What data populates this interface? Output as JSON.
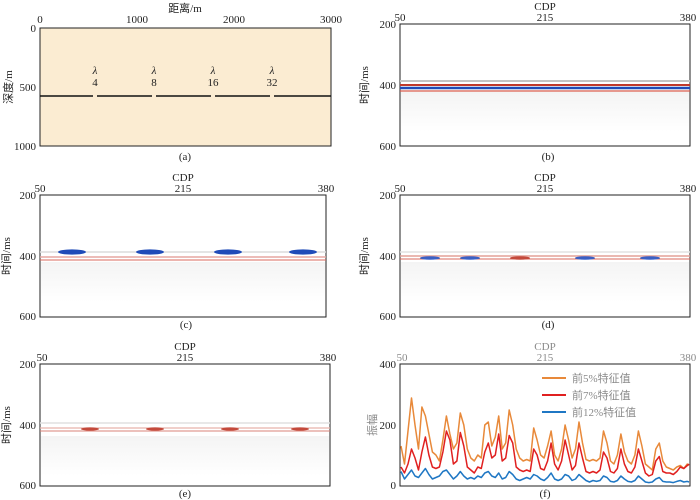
{
  "colors": {
    "model_fill": "#fbecd2",
    "text": "#222222",
    "grey_text": "#8a8a8a",
    "red": "#c0392b",
    "blue": "#1f4bb8",
    "orange": "#e8893a",
    "series_red": "#e02020",
    "series_blue": "#1f77c4"
  },
  "panels": {
    "a": {
      "label": "(a)",
      "xlabel": "距离/m",
      "ylabel": "深度/m",
      "xticks": [
        "0",
        "1000",
        "2000",
        "3000"
      ],
      "yticks": [
        "0",
        "500",
        "1000"
      ],
      "lambda_symbol": "λ",
      "gap_labels": [
        "4",
        "8",
        "16",
        "32"
      ]
    },
    "b": {
      "label": "(b)",
      "xlabel": "CDP",
      "ylabel": "时间/ms",
      "xticks": [
        "50",
        "215",
        "380"
      ],
      "yticks": [
        "200",
        "400",
        "600"
      ]
    },
    "c": {
      "label": "(c)",
      "xlabel": "CDP",
      "ylabel": "时间/ms",
      "xticks": [
        "50",
        "215",
        "380"
      ],
      "yticks": [
        "200",
        "400",
        "600"
      ]
    },
    "d": {
      "label": "(d)",
      "xlabel": "CDP",
      "ylabel": "时间/ms",
      "xticks": [
        "50",
        "215",
        "380"
      ],
      "yticks": [
        "200",
        "400",
        "600"
      ]
    },
    "e": {
      "label": "(e)",
      "xlabel": "CDP",
      "ylabel": "时间/ms",
      "xticks": [
        "50",
        "215",
        "380"
      ],
      "yticks": [
        "200",
        "400",
        "600"
      ]
    },
    "f": {
      "label": "(f)",
      "xlabel": "CDP",
      "ylabel": "振幅",
      "xticks": [
        "50",
        "215",
        "380"
      ],
      "yticks": [
        "0",
        "200",
        "400"
      ]
    }
  },
  "chart_data": {
    "type": "line",
    "title": "",
    "xlabel": "CDP",
    "ylabel": "振幅",
    "xlim": [
      50,
      380
    ],
    "ylim": [
      0,
      400
    ],
    "legend_position": "top-right",
    "series": [
      {
        "name": "前5%特征值",
        "color": "#e8893a",
        "x": [
          50,
          54,
          58,
          62,
          66,
          70,
          74,
          78,
          82,
          86,
          90,
          94,
          98,
          102,
          106,
          110,
          114,
          118,
          122,
          126,
          130,
          134,
          138,
          142,
          146,
          150,
          154,
          158,
          162,
          166,
          170,
          174,
          178,
          182,
          186,
          190,
          194,
          198,
          202,
          206,
          210,
          214,
          218,
          222,
          226,
          230,
          234,
          238,
          242,
          246,
          250,
          254,
          258,
          262,
          266,
          270,
          274,
          278,
          282,
          286,
          290,
          294,
          298,
          302,
          306,
          310,
          314,
          318,
          322,
          326,
          330,
          334,
          338,
          342,
          346,
          350,
          354,
          358,
          362,
          366,
          370,
          374,
          378,
          380
        ],
        "values": [
          130,
          70,
          180,
          290,
          200,
          120,
          260,
          230,
          170,
          110,
          100,
          80,
          150,
          230,
          170,
          120,
          140,
          240,
          200,
          120,
          90,
          80,
          100,
          90,
          200,
          210,
          130,
          160,
          230,
          120,
          140,
          250,
          200,
          120,
          90,
          80,
          85,
          80,
          190,
          150,
          100,
          90,
          130,
          180,
          100,
          80,
          120,
          200,
          150,
          90,
          120,
          210,
          140,
          85,
          80,
          85,
          80,
          90,
          180,
          140,
          80,
          70,
          100,
          170,
          110,
          80,
          70,
          100,
          180,
          130,
          70,
          60,
          50,
          120,
          140,
          80,
          60,
          55,
          50,
          60,
          65,
          55,
          70,
          65
        ]
      },
      {
        "name": "前7%特征值",
        "color": "#e02020",
        "x": [
          50,
          54,
          58,
          62,
          66,
          70,
          74,
          78,
          82,
          86,
          90,
          94,
          98,
          102,
          106,
          110,
          114,
          118,
          122,
          126,
          130,
          134,
          138,
          142,
          146,
          150,
          154,
          158,
          162,
          166,
          170,
          174,
          178,
          182,
          186,
          190,
          194,
          198,
          202,
          206,
          210,
          214,
          218,
          222,
          226,
          230,
          234,
          238,
          242,
          246,
          250,
          254,
          258,
          262,
          266,
          270,
          274,
          278,
          282,
          286,
          290,
          294,
          298,
          302,
          306,
          310,
          314,
          318,
          322,
          326,
          330,
          334,
          338,
          342,
          346,
          350,
          354,
          358,
          362,
          366,
          370,
          374,
          378,
          380
        ],
        "values": [
          60,
          40,
          70,
          120,
          90,
          50,
          110,
          160,
          100,
          60,
          55,
          60,
          110,
          180,
          150,
          70,
          80,
          175,
          130,
          60,
          50,
          40,
          60,
          55,
          110,
          140,
          90,
          100,
          170,
          80,
          90,
          165,
          140,
          60,
          50,
          45,
          50,
          45,
          120,
          100,
          55,
          50,
          80,
          140,
          70,
          50,
          80,
          150,
          100,
          50,
          65,
          140,
          90,
          45,
          40,
          45,
          40,
          50,
          110,
          90,
          45,
          40,
          55,
          120,
          70,
          45,
          40,
          60,
          120,
          80,
          40,
          30,
          35,
          80,
          95,
          45,
          40,
          40,
          35,
          45,
          60,
          55,
          65,
          70
        ]
      },
      {
        "name": "前12%特征值",
        "color": "#1f77c4",
        "x": [
          50,
          54,
          58,
          62,
          66,
          70,
          74,
          78,
          82,
          86,
          90,
          94,
          98,
          102,
          106,
          110,
          114,
          118,
          122,
          126,
          130,
          134,
          138,
          142,
          146,
          150,
          154,
          158,
          162,
          166,
          170,
          174,
          178,
          182,
          186,
          190,
          194,
          198,
          202,
          206,
          210,
          214,
          218,
          222,
          226,
          230,
          234,
          238,
          242,
          246,
          250,
          254,
          258,
          262,
          266,
          270,
          274,
          278,
          282,
          286,
          290,
          294,
          298,
          302,
          306,
          310,
          314,
          318,
          322,
          326,
          330,
          334,
          338,
          342,
          346,
          350,
          354,
          358,
          362,
          366,
          370,
          374,
          378,
          380
        ],
        "values": [
          45,
          20,
          35,
          50,
          30,
          25,
          40,
          55,
          35,
          20,
          25,
          30,
          45,
          50,
          35,
          20,
          30,
          45,
          30,
          20,
          25,
          20,
          30,
          25,
          40,
          45,
          30,
          25,
          40,
          20,
          25,
          45,
          35,
          20,
          15,
          20,
          25,
          20,
          35,
          30,
          20,
          15,
          25,
          40,
          20,
          15,
          20,
          35,
          30,
          15,
          20,
          35,
          25,
          15,
          10,
          15,
          12,
          15,
          30,
          25,
          12,
          10,
          15,
          30,
          20,
          12,
          10,
          15,
          30,
          20,
          10,
          8,
          10,
          20,
          25,
          12,
          10,
          10,
          8,
          12,
          15,
          10,
          12,
          10
        ]
      }
    ]
  }
}
